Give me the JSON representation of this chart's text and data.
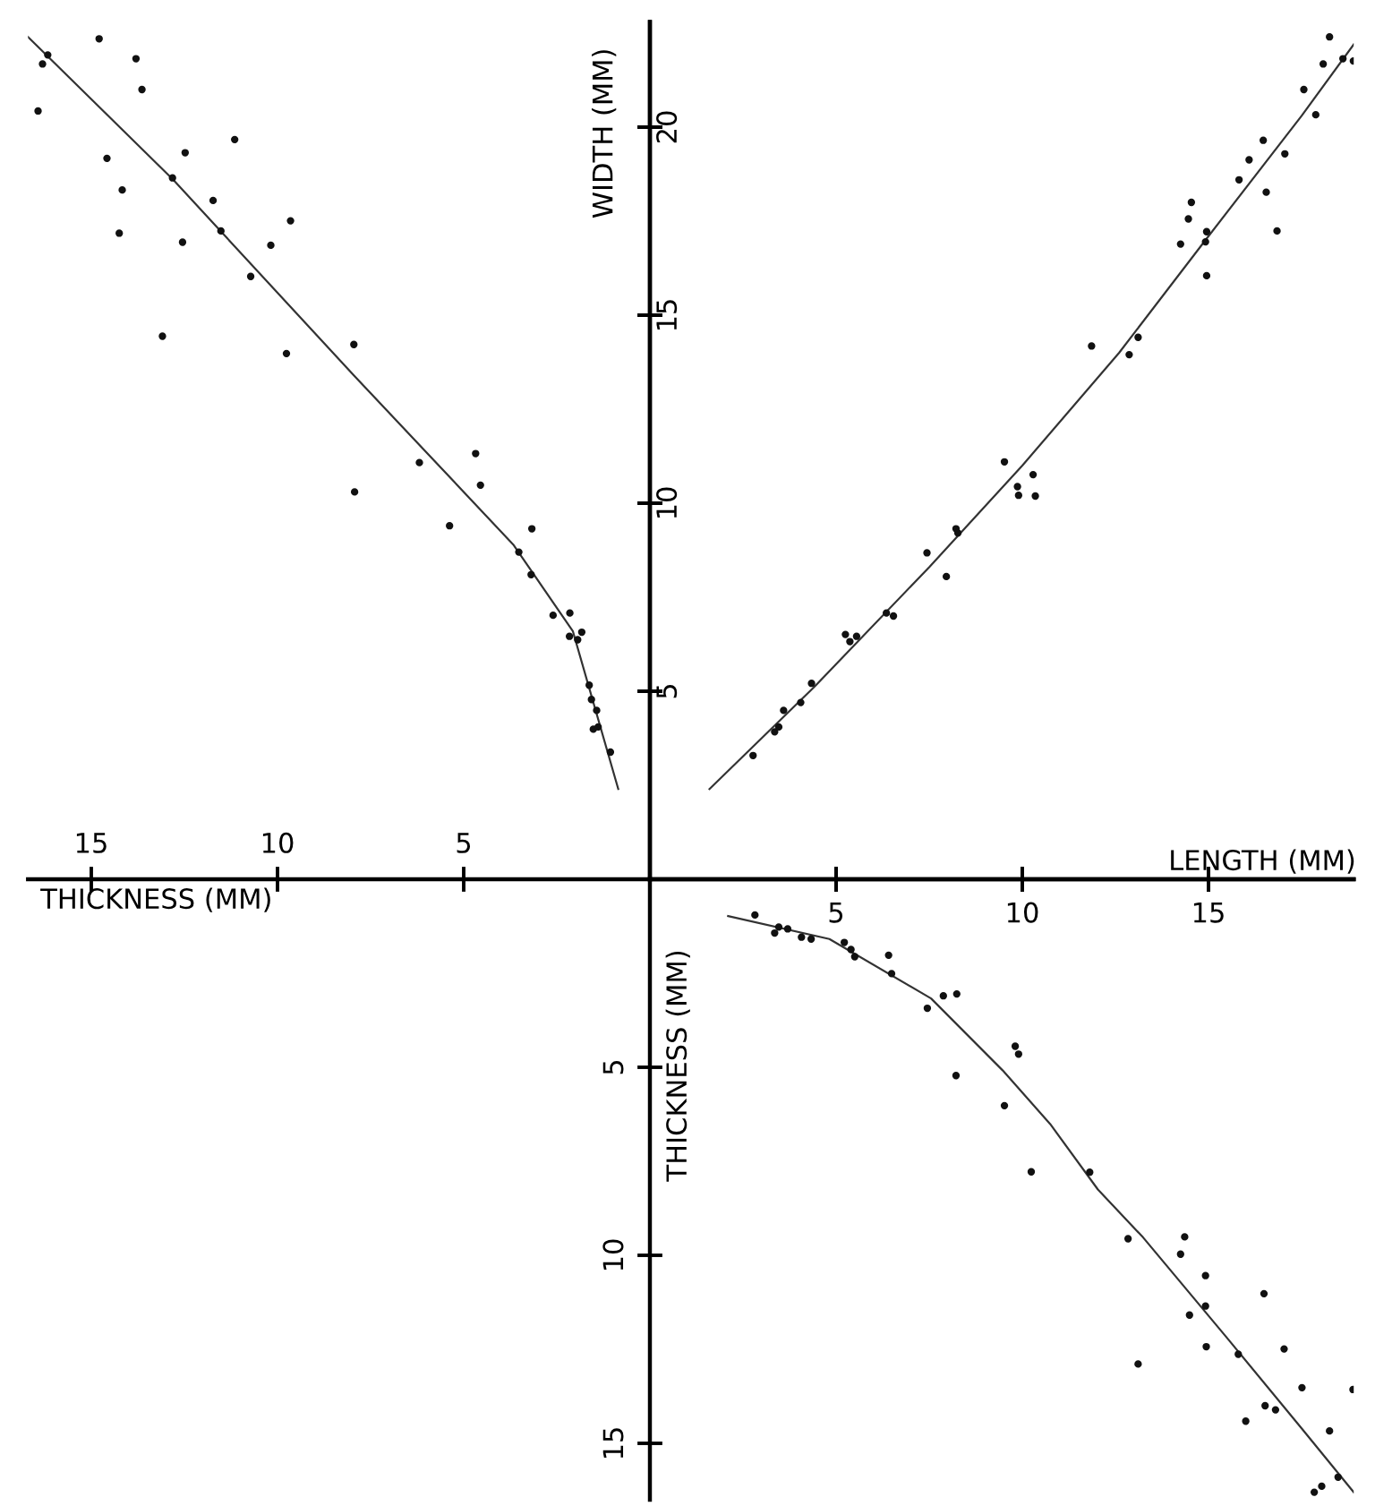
{
  "chart_data": [
    {
      "type": "scatter",
      "xlabel": "LENGTH (MM)",
      "ylabel": "WIDTH (MM)",
      "xlim": [
        0,
        18.9
      ],
      "ylim": [
        0,
        22.8
      ],
      "xticks": [
        5,
        10,
        15
      ],
      "yticks": [
        5,
        10,
        15,
        20
      ],
      "grid": false,
      "marker": "circle",
      "series": [
        {
          "color": "#111111",
          "x": [
            2.77,
            3.35,
            3.46,
            3.59,
            4.05,
            4.34,
            5.25,
            5.37,
            5.55,
            6.35,
            6.54,
            7.44,
            7.96,
            8.22,
            8.27,
            9.52,
            9.87,
            9.9,
            10.29,
            10.35,
            11.86,
            12.87,
            13.11,
            14.25,
            14.46,
            14.54,
            14.92,
            14.95,
            14.95,
            15.82,
            16.09,
            16.47,
            16.55,
            16.84,
            17.05,
            17.56,
            17.88,
            18.08,
            18.25,
            18.61,
            18.89
          ],
          "values": [
            3.29,
            3.92,
            4.05,
            4.49,
            4.7,
            5.21,
            6.51,
            6.32,
            6.46,
            7.08,
            7.0,
            8.68,
            8.05,
            9.32,
            9.21,
            11.1,
            10.44,
            10.21,
            10.76,
            10.19,
            14.18,
            13.95,
            14.41,
            16.89,
            17.56,
            18.0,
            16.95,
            17.22,
            16.05,
            18.6,
            19.13,
            19.65,
            18.27,
            17.24,
            19.29,
            21.0,
            20.33,
            21.68,
            22.4,
            21.82,
            21.76
          ]
        },
        {
          "type": "line",
          "color": "#333333",
          "marker": "none",
          "x": [
            1.6,
            4.4,
            7.5,
            10,
            12.6,
            15,
            17.5,
            18.9
          ],
          "values": [
            2.4,
            5.1,
            8.3,
            11.0,
            14.0,
            17.1,
            20.3,
            22.2
          ]
        }
      ]
    },
    {
      "type": "scatter",
      "xlabel": "THICKNESS (MM)",
      "xlim": [
        16.7,
        0
      ],
      "ylim": [
        0,
        22.8
      ],
      "xticks": [
        5,
        10,
        15
      ],
      "yticks": [
        5,
        10,
        15,
        20
      ],
      "tick_labels": "x",
      "grid": false,
      "marker": "circle",
      "series": [
        {
          "color": "#111111",
          "x": [
            14.79,
            16.17,
            16.31,
            13.8,
            13.64,
            16.43,
            11.15,
            12.48,
            14.58,
            12.82,
            14.17,
            11.73,
            11.52,
            9.65,
            14.25,
            12.55,
            10.18,
            10.72,
            13.09,
            7.95,
            9.76,
            6.19,
            4.68,
            4.55,
            7.93,
            5.38,
            3.17,
            3.52,
            3.19,
            2.6,
            2.15,
            2.16,
            1.94,
            1.83,
            1.63,
            1.57,
            1.43,
            1.52,
            1.39,
            1.06
          ],
          "values": [
            22.35,
            21.92,
            21.68,
            21.82,
            21.0,
            20.43,
            19.67,
            19.32,
            19.17,
            18.65,
            18.33,
            18.05,
            17.24,
            17.51,
            17.18,
            16.94,
            16.86,
            16.03,
            14.44,
            14.22,
            13.98,
            11.08,
            11.32,
            10.48,
            10.3,
            9.4,
            9.32,
            8.7,
            8.1,
            7.02,
            7.08,
            6.46,
            6.37,
            6.57,
            5.16,
            4.78,
            4.49,
            3.99,
            4.05,
            3.38
          ]
        },
        {
          "type": "line",
          "color": "#333333",
          "marker": "none",
          "x": [
            16.7,
            12.8,
            7.95,
            3.67,
            2.07,
            0.85
          ],
          "values": [
            22.4,
            18.6,
            13.4,
            8.9,
            6.6,
            2.4
          ]
        }
      ]
    },
    {
      "type": "scatter",
      "ylabel": "THICKNESS (MM)",
      "xlim": [
        0,
        18.9
      ],
      "ylim": [
        16.5,
        0
      ],
      "xticks": [
        5,
        10,
        15
      ],
      "yticks": [
        5,
        10,
        15
      ],
      "tick_labels": "y",
      "grid": false,
      "marker": "circle",
      "series": [
        {
          "color": "#111111",
          "x": [
            2.82,
            3.35,
            3.46,
            3.7,
            4.07,
            4.33,
            5.22,
            5.4,
            5.5,
            6.41,
            6.49,
            7.45,
            7.88,
            8.24,
            8.22,
            9.52,
            9.81,
            9.9,
            10.24,
            11.81,
            12.84,
            14.36,
            14.25,
            14.92,
            16.49,
            14.49,
            14.92,
            13.11,
            14.94,
            15.8,
            17.03,
            17.51,
            18.88,
            16.52,
            16.8,
            16.0,
            18.25,
            17.84,
            18.04,
            18.48
          ],
          "values": [
            0.95,
            1.43,
            1.27,
            1.32,
            1.54,
            1.59,
            1.68,
            1.87,
            2.06,
            2.02,
            2.51,
            3.43,
            3.1,
            3.05,
            5.22,
            6.02,
            4.44,
            4.65,
            7.78,
            7.79,
            9.56,
            9.51,
            9.97,
            10.54,
            11.02,
            11.59,
            11.35,
            12.89,
            12.43,
            12.63,
            12.49,
            13.52,
            13.57,
            14.0,
            14.11,
            14.41,
            14.67,
            16.3,
            16.14,
            15.9
          ]
        },
        {
          "type": "line",
          "color": "#333333",
          "marker": "none",
          "x": [
            2.1,
            4.82,
            7.55,
            9.47,
            10.75,
            12.03,
            13.24,
            15.5,
            17.5,
            18.9
          ],
          "values": [
            0.98,
            1.59,
            3.17,
            5.08,
            6.51,
            8.25,
            9.52,
            12.2,
            14.6,
            16.3
          ]
        }
      ]
    }
  ]
}
